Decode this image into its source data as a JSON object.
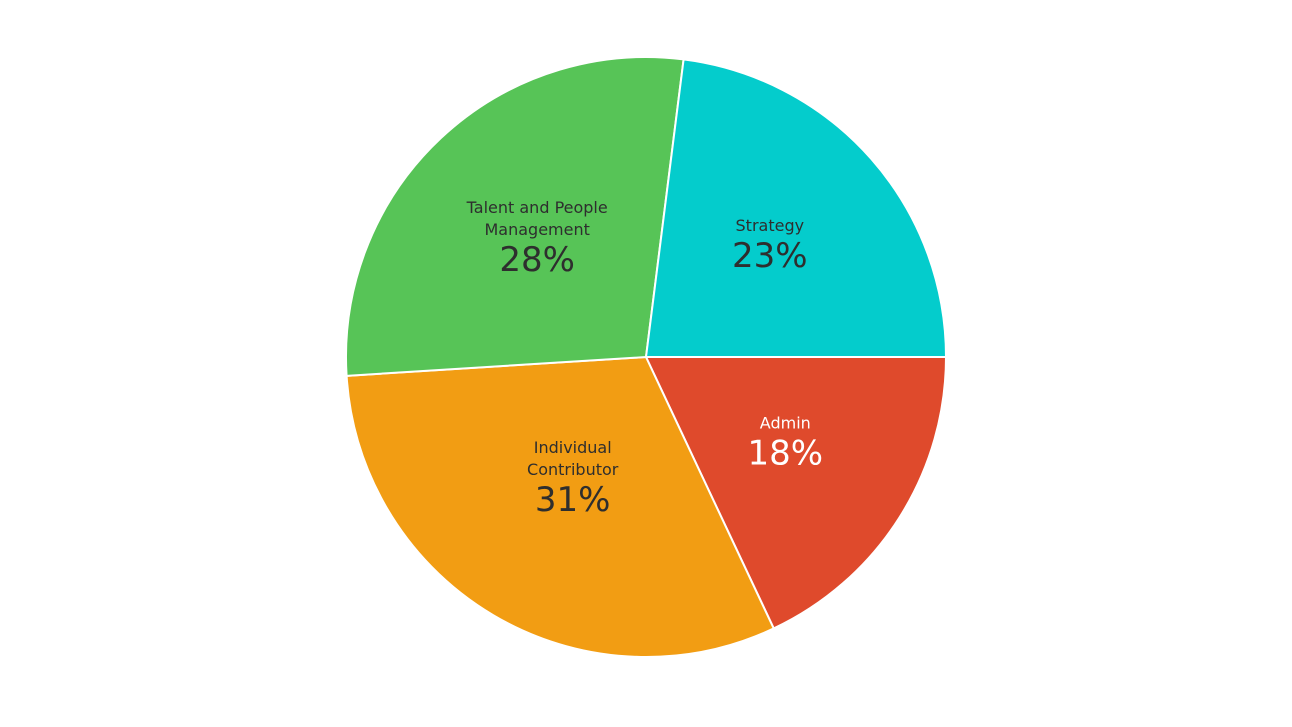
{
  "chart_data": {
    "type": "pie",
    "title": "",
    "slices": [
      {
        "name": "Admin",
        "name_lines": [
          "Admin"
        ],
        "value": 18,
        "label": "18%",
        "color": "#DF4A2C",
        "text_color": "#FFFFFF"
      },
      {
        "name": "Individual Contributor",
        "name_lines": [
          "Individual",
          "Contributor"
        ],
        "value": 31,
        "label": "31%",
        "color": "#F29D13",
        "text_color": "#2E2E2E"
      },
      {
        "name": "Talent and People Management",
        "name_lines": [
          "Talent and People",
          "Management"
        ],
        "value": 28,
        "label": "28%",
        "color": "#57C457",
        "text_color": "#2E2E2E"
      },
      {
        "name": "Strategy",
        "name_lines": [
          "Strategy"
        ],
        "value": 23,
        "label": "23%",
        "color": "#04CCCC",
        "text_color": "#2E2E2E"
      }
    ],
    "start_angle": "3 o'clock",
    "direction": "clockwise",
    "legend": "none",
    "background": "#FFFFFF"
  }
}
